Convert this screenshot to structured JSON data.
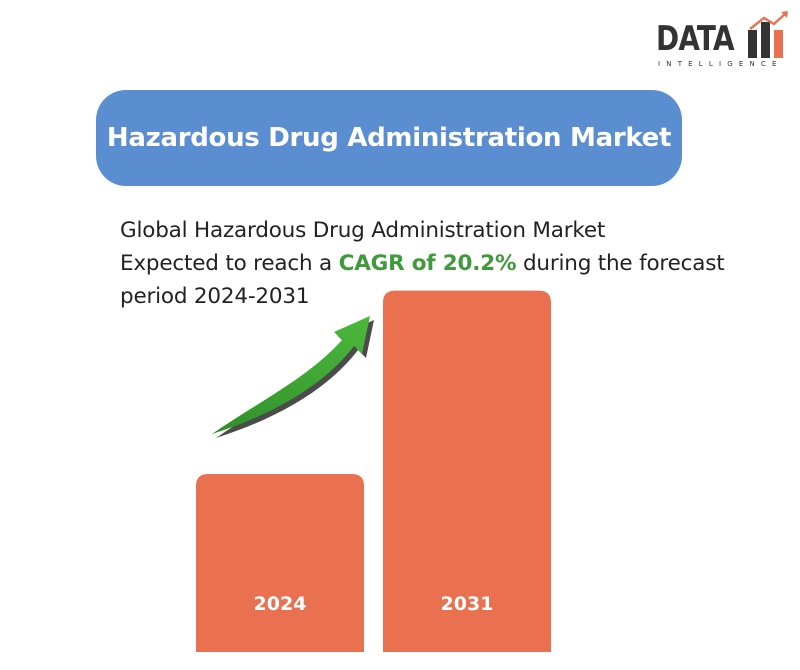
{
  "logo": {
    "word": "DATA",
    "subtitle": "INTELLIGENCE"
  },
  "title": "Hazardous Drug Administration Market",
  "description": {
    "line1": "Global Hazardous Drug Administration Market",
    "line2_prefix": "Expected to reach a ",
    "line2_highlight": "CAGR of 20.2%",
    "line2_suffix": " during the forecast",
    "line3": "period 2024-2031"
  },
  "colors": {
    "title_bg": "#5b8ed1",
    "bar": "#e9714f",
    "highlight": "#3e9a3a",
    "arrow": "#3ea233"
  },
  "chart_data": {
    "type": "bar",
    "categories": [
      "2024",
      "2031"
    ],
    "values": [
      1,
      2.03
    ],
    "title": "",
    "xlabel": "",
    "ylabel": "",
    "grid": false,
    "legend": "none"
  }
}
